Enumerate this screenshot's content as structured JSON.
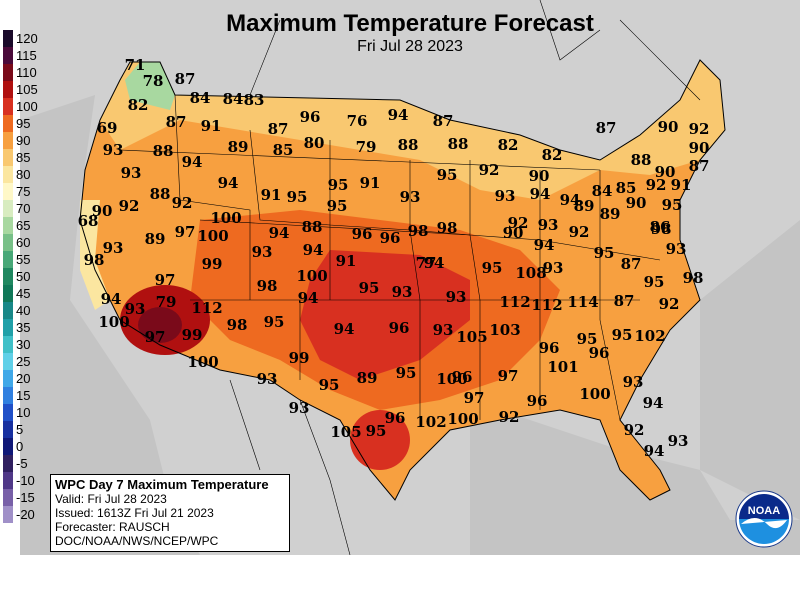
{
  "title": "Maximum Temperature Forecast",
  "subtitle": "Fri Jul 28 2023",
  "legend": {
    "labels": [
      "120",
      "115",
      "110",
      "105",
      "100",
      "95",
      "90",
      "85",
      "80",
      "75",
      "70",
      "65",
      "60",
      "55",
      "50",
      "45",
      "40",
      "35",
      "30",
      "25",
      "20",
      "15",
      "10",
      "5",
      "0",
      "-5",
      "-10",
      "-15",
      "-20"
    ],
    "colors": [
      "#1a0a2a",
      "#4a0a3a",
      "#7a0a1a",
      "#b01010",
      "#d83020",
      "#ee6a20",
      "#f7a040",
      "#f9c870",
      "#fbe6a0",
      "#fff8c8",
      "#d8ecc0",
      "#a8d8a0",
      "#78c088",
      "#48a878",
      "#208860",
      "#107858",
      "#188888",
      "#20a0a8",
      "#40c0c8",
      "#60d0e8",
      "#40a8e8",
      "#3080e0",
      "#2050c8",
      "#1830a0",
      "#101878",
      "#302060",
      "#503888",
      "#7860a8",
      "#a090c8"
    ]
  },
  "temperatures": [
    "71",
    "78",
    "87",
    "84",
    "84",
    "83",
    "82",
    "87",
    "91",
    "69",
    "93",
    "88",
    "87",
    "96",
    "76",
    "94",
    "87",
    "94",
    "89",
    "85",
    "80",
    "79",
    "88",
    "88",
    "82",
    "82",
    "87",
    "88",
    "90",
    "92",
    "90",
    "87",
    "93",
    "88",
    "94",
    "92",
    "91",
    "95",
    "95",
    "91",
    "95",
    "93",
    "95",
    "92",
    "93",
    "94",
    "94",
    "90",
    "90",
    "84",
    "85",
    "92",
    "91",
    "89",
    "89",
    "90",
    "95",
    "68",
    "90",
    "92",
    "100",
    "94",
    "88",
    "96",
    "96",
    "98",
    "98",
    "92",
    "93",
    "92",
    "98",
    "93",
    "89",
    "97",
    "100",
    "93",
    "94",
    "91",
    "90",
    "94",
    "95",
    "86",
    "93",
    "98",
    "99",
    "100",
    "95",
    "93",
    "94",
    "95",
    "108",
    "93",
    "87",
    "98",
    "97",
    "98",
    "94",
    "93",
    "77",
    "112",
    "114",
    "87",
    "95",
    "92",
    "94",
    "93",
    "79",
    "112",
    "112",
    "96",
    "100",
    "97",
    "99",
    "98",
    "95",
    "94",
    "96",
    "93",
    "105",
    "103",
    "95",
    "96",
    "95",
    "102",
    "100",
    "99",
    "101",
    "97",
    "96",
    "93",
    "95",
    "89",
    "95",
    "100",
    "97",
    "96",
    "100",
    "93",
    "94",
    "93",
    "96",
    "102",
    "100",
    "92",
    "95",
    "92",
    "105",
    "93",
    "94"
  ],
  "info_box": {
    "title": "WPC Day 7 Maximum Temperature",
    "valid": "Valid: Fri Jul 28 2023",
    "issued": "Issued: 1613Z Fri Jul 21 2023",
    "forecaster": "Forecaster: RAUSCH",
    "agency": "DOC/NOAA/NWS/NCEP/WPC"
  },
  "logo_text": "NOAA",
  "colors": {
    "land_outside": "#bfbfbf",
    "water": "#bfbfbf"
  }
}
